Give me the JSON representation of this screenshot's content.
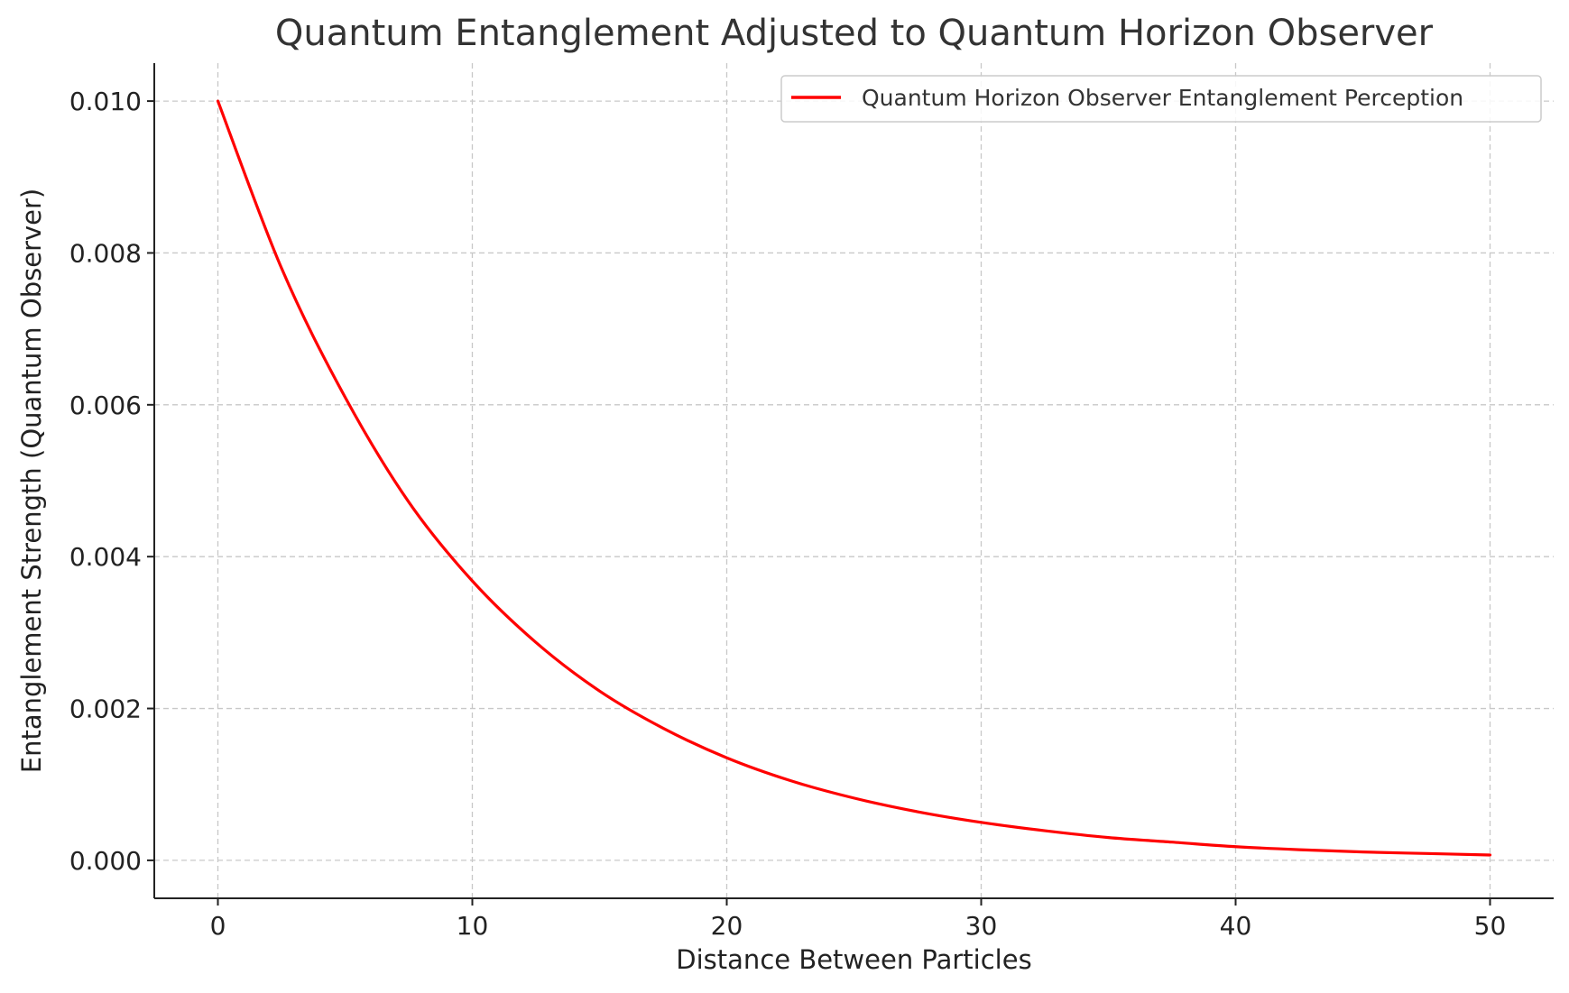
{
  "chart_data": {
    "type": "line",
    "title": "Quantum Entanglement Adjusted to Quantum Horizon Observer",
    "xlabel": "Distance Between Particles",
    "ylabel": "Entanglement Strength (Quantum Observer)",
    "xlim": [
      -2.5,
      52.5
    ],
    "ylim": [
      -0.0005,
      0.0105
    ],
    "xticks": [
      0,
      10,
      20,
      30,
      40,
      50
    ],
    "xtick_labels": [
      "0",
      "10",
      "20",
      "30",
      "40",
      "50"
    ],
    "yticks": [
      0.0,
      0.002,
      0.004,
      0.006,
      0.008,
      0.01
    ],
    "ytick_labels": [
      "0.000",
      "0.002",
      "0.004",
      "0.006",
      "0.008",
      "0.010"
    ],
    "grid": true,
    "legend_position": "top-right",
    "series": [
      {
        "name": "Quantum Horizon Observer Entanglement Perception",
        "color": "#ff0000",
        "x": [
          0,
          2.5,
          5,
          7.5,
          10,
          12.5,
          15,
          17.5,
          20,
          22.5,
          25,
          27.5,
          30,
          32.5,
          35,
          37.5,
          40,
          42.5,
          45,
          47.5,
          50
        ],
        "y": [
          0.01,
          0.0078,
          0.0061,
          0.00472,
          0.00368,
          0.00287,
          0.00223,
          0.00174,
          0.00135,
          0.00105,
          0.00082,
          0.00064,
          0.0005,
          0.00039,
          0.0003,
          0.00024,
          0.00018,
          0.00014,
          0.00011,
          9e-05,
          7e-05
        ]
      }
    ]
  }
}
